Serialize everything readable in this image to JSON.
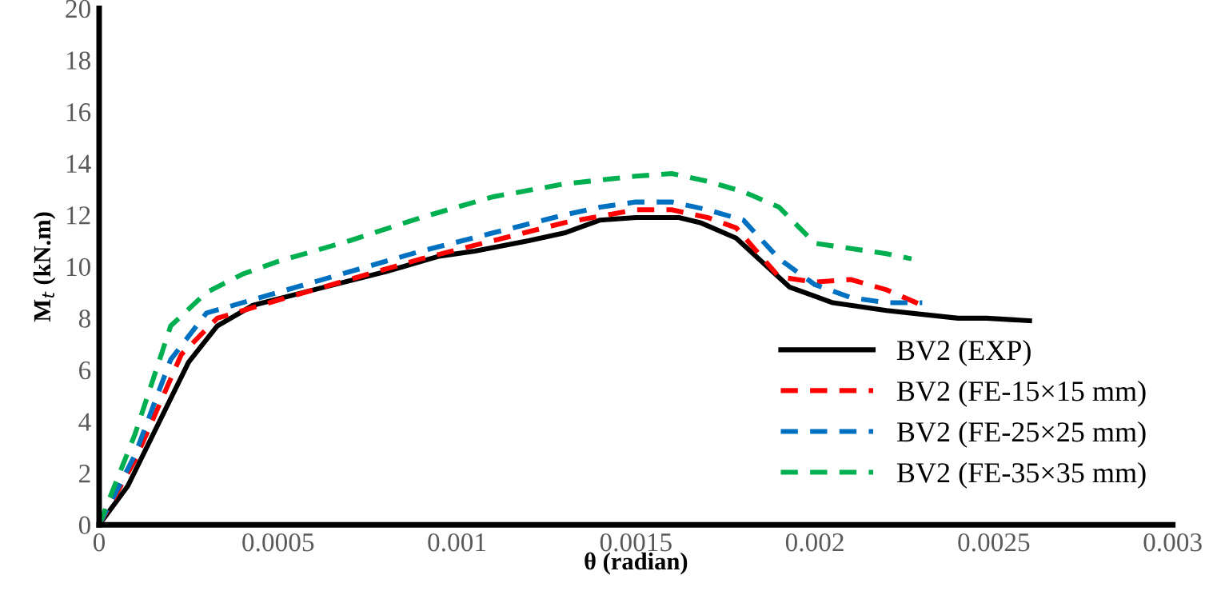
{
  "chart_data": {
    "type": "line",
    "xlabel": "θ (radian)",
    "ylabel": "M$_{t}$ (kN.m)",
    "xlim": [
      0,
      0.003
    ],
    "ylim": [
      0,
      20
    ],
    "xticks": [
      0,
      0.0005,
      0.001,
      0.0015,
      0.002,
      0.0025,
      0.003
    ],
    "yticks": [
      0,
      2,
      4,
      6,
      8,
      10,
      12,
      14,
      16,
      18,
      20
    ],
    "grid": false,
    "legend": "bottom right",
    "marker": "none",
    "series": [
      {
        "name": "BV2 (EXP)",
        "color": "#000000",
        "line_style": "solid",
        "x": [
          0,
          8e-05,
          0.00025,
          0.00033,
          0.00043,
          0.0006,
          0.0008,
          0.00095,
          0.00105,
          0.0012,
          0.0013,
          0.0014,
          0.0015,
          0.00162,
          0.00168,
          0.00178,
          0.00193,
          0.00205,
          0.0022,
          0.0024,
          0.00248,
          0.0026
        ],
        "values": [
          0,
          1.5,
          6.3,
          7.7,
          8.5,
          9.1,
          9.8,
          10.4,
          10.6,
          11.0,
          11.3,
          11.8,
          11.9,
          11.9,
          11.7,
          11.1,
          9.2,
          8.6,
          8.3,
          8.0,
          8.0,
          7.9
        ]
      },
      {
        "name": "BV2 (FE-15×15 mm)",
        "color": "#ff0000",
        "line_style": "dashed",
        "x": [
          0,
          0.0001,
          0.00023,
          0.00033,
          0.0005,
          0.0007,
          0.0009,
          0.0011,
          0.0013,
          0.0015,
          0.0016,
          0.0017,
          0.00178,
          0.0019,
          0.002,
          0.0021,
          0.0022,
          0.0023
        ],
        "values": [
          0,
          2.5,
          6.6,
          8.0,
          8.7,
          9.5,
          10.3,
          11.0,
          11.7,
          12.2,
          12.2,
          11.9,
          11.5,
          9.6,
          9.4,
          9.5,
          9.1,
          8.5
        ]
      },
      {
        "name": "BV2 (FE-25×25 mm)",
        "color": "#0070c0",
        "line_style": "dashed",
        "x": [
          0,
          0.0001,
          0.0002,
          0.0003,
          0.0005,
          0.0007,
          0.0009,
          0.0011,
          0.0013,
          0.0014,
          0.0015,
          0.0016,
          0.0017,
          0.0018,
          0.0019,
          0.002,
          0.0021,
          0.0022,
          0.0023
        ],
        "values": [
          0,
          2.7,
          6.4,
          8.2,
          9.0,
          9.8,
          10.6,
          11.3,
          12.0,
          12.3,
          12.5,
          12.5,
          12.2,
          11.8,
          10.3,
          9.3,
          8.8,
          8.6,
          8.6
        ]
      },
      {
        "name": "BV2 (FE-35×35 mm)",
        "color": "#00b050",
        "line_style": "dashed",
        "x": [
          0,
          0.0001,
          0.0002,
          0.0003,
          0.0004,
          0.0005,
          0.0007,
          0.0009,
          0.0011,
          0.0013,
          0.0015,
          0.0016,
          0.0017,
          0.0018,
          0.0019,
          0.002,
          0.0021,
          0.0022,
          0.00227
        ],
        "values": [
          0,
          3.5,
          7.7,
          9.0,
          9.7,
          10.2,
          11.0,
          11.9,
          12.7,
          13.2,
          13.5,
          13.6,
          13.3,
          12.9,
          12.3,
          10.9,
          10.7,
          10.5,
          10.3
        ]
      }
    ]
  }
}
